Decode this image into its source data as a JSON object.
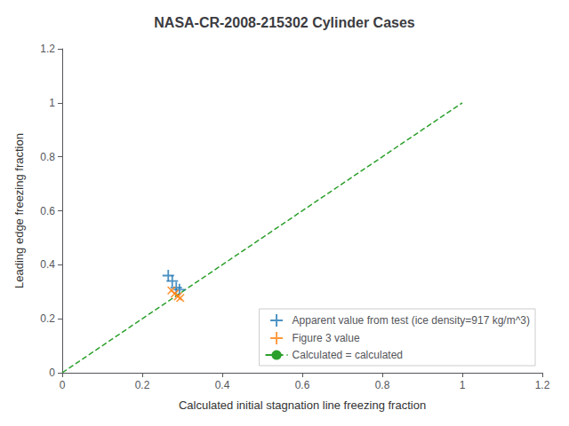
{
  "chart_data": {
    "type": "scatter",
    "title": "NASA-CR-2008-215302 Cylinder Cases",
    "xlabel": "Calculated initial stagnation line freezing fraction",
    "ylabel": "Leading edge freezing fraction",
    "xlim": [
      0.0,
      1.2
    ],
    "ylim": [
      0.0,
      1.2
    ],
    "xticks": [
      0,
      0.2,
      0.4,
      0.6,
      0.8,
      1,
      1.2
    ],
    "yticks": [
      0,
      0.2,
      0.4,
      0.6,
      0.8,
      1,
      1.2
    ],
    "grid": false,
    "legend": "lower right",
    "series": [
      {
        "name": "Apparent value from test (ice density=917 kg/m^3)",
        "type": "scatter",
        "marker": "plus",
        "color": "#1f77b4",
        "x": [
          0.265,
          0.275,
          0.285,
          0.293
        ],
        "values": [
          0.36,
          0.34,
          0.315,
          0.308
        ]
      },
      {
        "name": "Figure 3 value",
        "type": "scatter",
        "marker": "x",
        "color": "#ff7f0e",
        "x": [
          0.273,
          0.281,
          0.289,
          0.295
        ],
        "values": [
          0.305,
          0.293,
          0.283,
          0.277
        ]
      },
      {
        "name": "Calculated = calculated",
        "type": "line",
        "line_style": "dashed",
        "color": "#2ca02c",
        "x": [
          0.0,
          1.0
        ],
        "values": [
          0.0,
          1.0
        ]
      }
    ]
  }
}
